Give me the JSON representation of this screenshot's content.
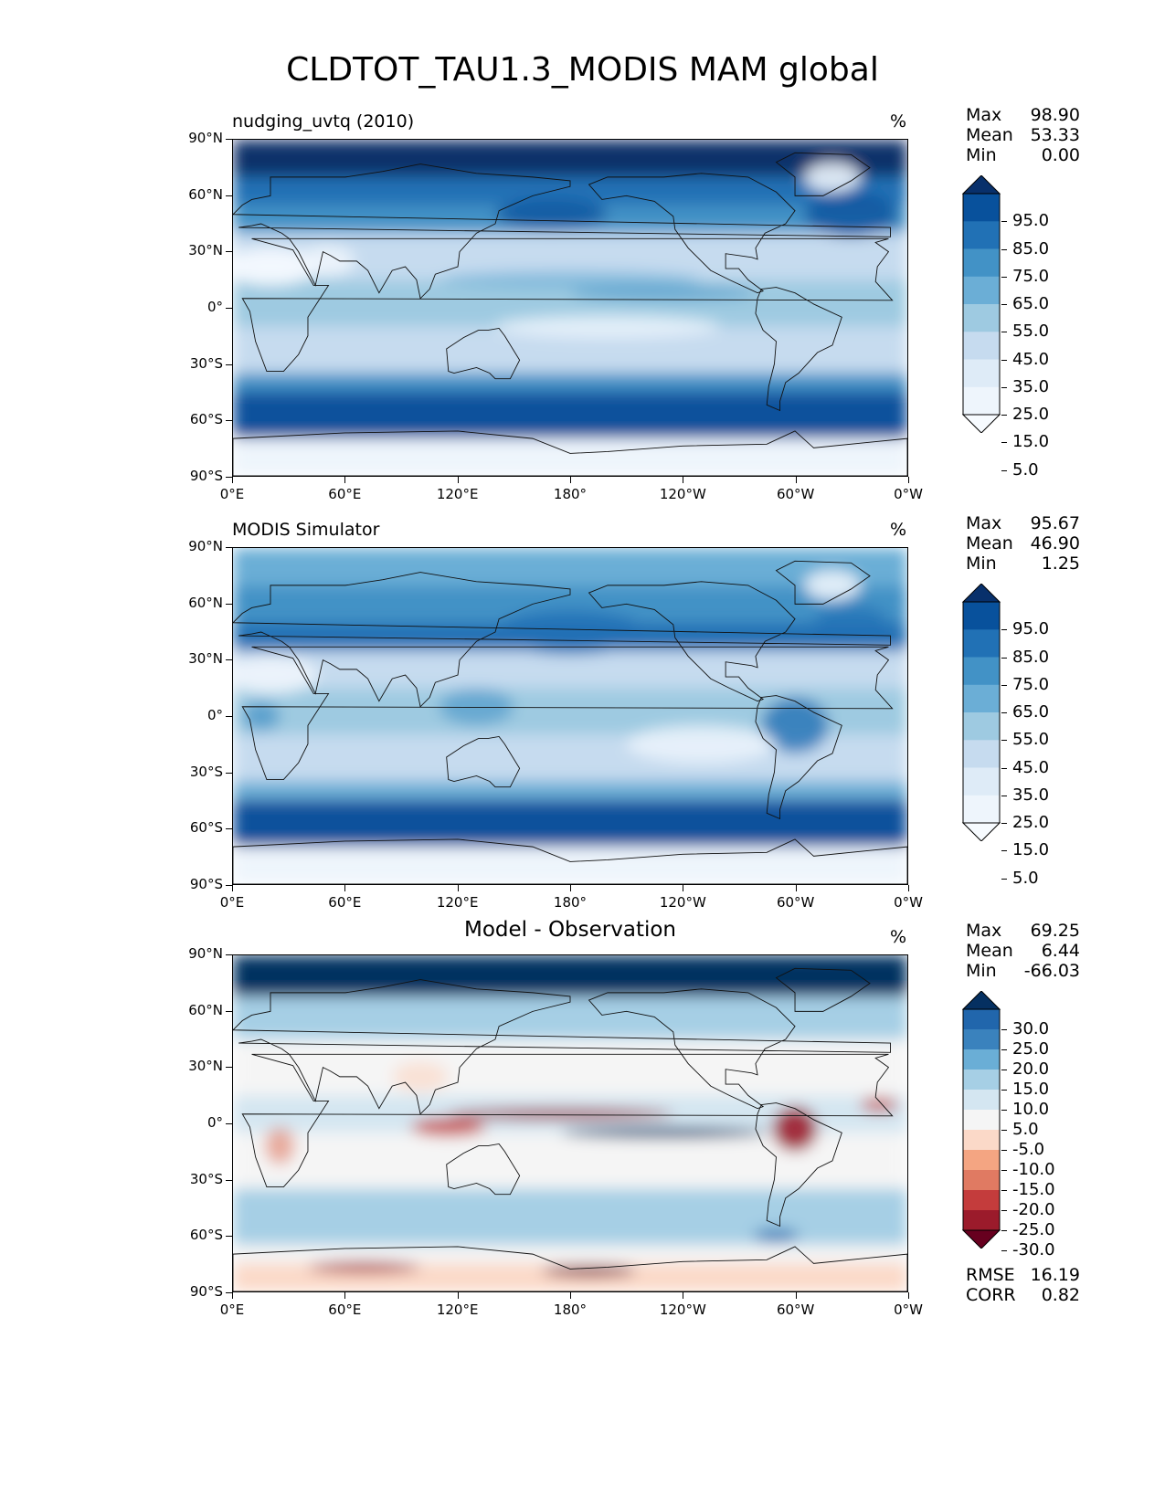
{
  "figure_title": "CLDTOT_TAU1.3_MODIS MAM global",
  "lat_ticks": [
    "90°N",
    "60°N",
    "30°N",
    "0°",
    "30°S",
    "60°S",
    "90°S"
  ],
  "lon_ticks": [
    "0°E",
    "60°E",
    "120°E",
    "180°",
    "120°W",
    "60°W",
    "0°W"
  ],
  "panels": [
    {
      "title": "nudging_uvtq (2010)",
      "title_style": "left",
      "units": "%",
      "stats": [
        {
          "label": "Max",
          "value": "98.90"
        },
        {
          "label": "Mean",
          "value": "53.33"
        },
        {
          "label": "Min",
          "value": "0.00"
        }
      ],
      "colorbar": {
        "labels": [
          "95.0",
          "85.0",
          "75.0",
          "65.0",
          "55.0",
          "45.0",
          "35.0",
          "25.0",
          "15.0",
          "5.0"
        ],
        "colors": [
          "#08306b",
          "#08519c",
          "#2171b5",
          "#4292c6",
          "#6baed6",
          "#9ecae1",
          "#c6dbef",
          "#deebf7",
          "#eef5fc",
          "#f7fbff"
        ]
      }
    },
    {
      "title": "MODIS Simulator",
      "title_style": "left",
      "units": "%",
      "stats": [
        {
          "label": "Max",
          "value": "95.67"
        },
        {
          "label": "Mean",
          "value": "46.90"
        },
        {
          "label": "Min",
          "value": "1.25"
        }
      ],
      "colorbar": {
        "labels": [
          "95.0",
          "85.0",
          "75.0",
          "65.0",
          "55.0",
          "45.0",
          "35.0",
          "25.0",
          "15.0",
          "5.0"
        ],
        "colors": [
          "#08306b",
          "#08519c",
          "#2171b5",
          "#4292c6",
          "#6baed6",
          "#9ecae1",
          "#c6dbef",
          "#deebf7",
          "#eef5fc",
          "#f7fbff"
        ]
      }
    },
    {
      "title": "Model - Observation",
      "title_style": "center",
      "units": "%",
      "stats": [
        {
          "label": "Max",
          "value": "69.25"
        },
        {
          "label": "Mean",
          "value": "6.44"
        },
        {
          "label": "Min",
          "value": "-66.03"
        }
      ],
      "colorbar": {
        "labels": [
          "30.0",
          "25.0",
          "20.0",
          "15.0",
          "10.0",
          "5.0",
          "-5.0",
          "-10.0",
          "-15.0",
          "-20.0",
          "-25.0",
          "-30.0"
        ],
        "colors": [
          "#053061",
          "#2166ac",
          "#3a82bd",
          "#6aaed6",
          "#a6cfe5",
          "#d4e6f1",
          "#f5f5f5",
          "#fbd9c8",
          "#f4a582",
          "#e07a62",
          "#c43c3c",
          "#9b1b2b",
          "#67001f"
        ]
      },
      "metrics": [
        {
          "label": "RMSE",
          "value": "16.19"
        },
        {
          "label": "CORR",
          "value": "0.82"
        }
      ]
    }
  ]
}
